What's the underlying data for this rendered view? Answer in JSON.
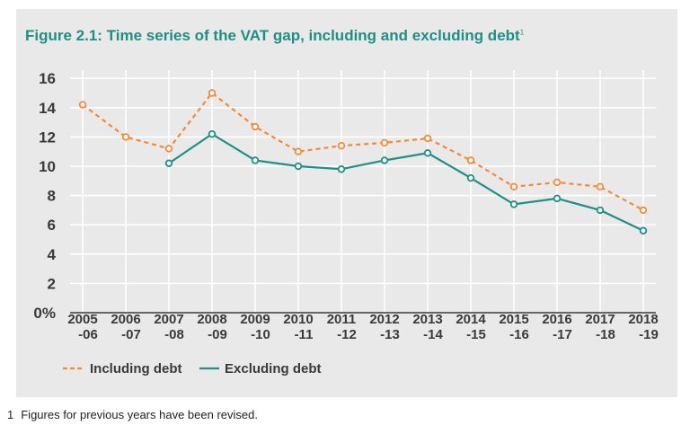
{
  "title": "Figure 2.1: Time series of the VAT gap, including and excluding debt",
  "title_footnote_marker": "1",
  "footnote": {
    "number": "1",
    "text": "Figures for previous years have been revised."
  },
  "chart_data": {
    "type": "line",
    "title": "Figure 2.1: Time series of the VAT gap, including and excluding debt",
    "xlabel": "",
    "ylabel": "",
    "ylim": [
      0,
      16
    ],
    "y_ticks": [
      "0%",
      "2",
      "4",
      "6",
      "8",
      "10",
      "12",
      "14",
      "16"
    ],
    "y_tick_values": [
      0,
      2,
      4,
      6,
      8,
      10,
      12,
      14,
      16
    ],
    "categories": [
      [
        "2005",
        "-06"
      ],
      [
        "2006",
        "-07"
      ],
      [
        "2007",
        "-08"
      ],
      [
        "2008",
        "-09"
      ],
      [
        "2009",
        "-10"
      ],
      [
        "2010",
        "-11"
      ],
      [
        "2011",
        "-12"
      ],
      [
        "2012",
        "-13"
      ],
      [
        "2013",
        "-14"
      ],
      [
        "2014",
        "-15"
      ],
      [
        "2015",
        "-16"
      ],
      [
        "2016",
        "-17"
      ],
      [
        "2017",
        "-18"
      ],
      [
        "2018",
        "-19"
      ]
    ],
    "series": [
      {
        "name": "Including debt",
        "color": "#f28a38",
        "style": "dashed",
        "values": [
          14.2,
          12.0,
          11.2,
          15.0,
          12.7,
          11.0,
          11.4,
          11.6,
          11.9,
          10.4,
          8.6,
          8.9,
          8.6,
          7.0
        ]
      },
      {
        "name": "Excluding debt",
        "color": "#1f8f85",
        "style": "solid",
        "values": [
          null,
          null,
          10.2,
          12.2,
          10.4,
          10.0,
          9.8,
          10.4,
          10.9,
          9.2,
          7.4,
          7.8,
          7.0,
          5.6
        ]
      }
    ],
    "grid": true,
    "legend": "bottom-left"
  }
}
